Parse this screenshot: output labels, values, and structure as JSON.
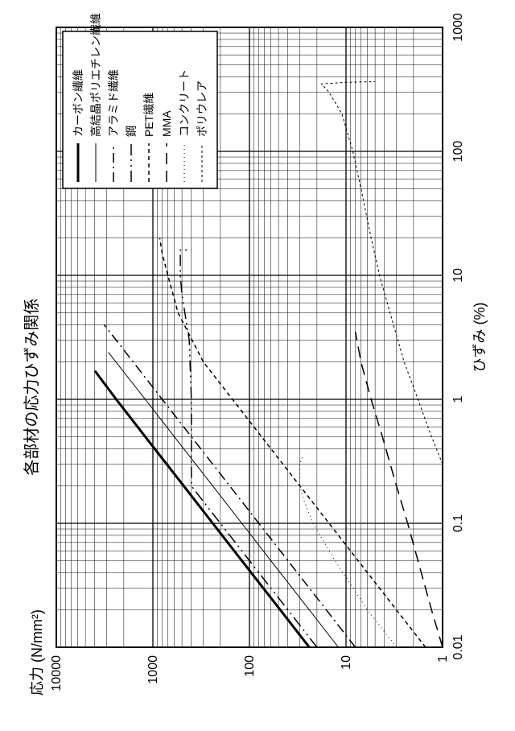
{
  "chart": {
    "type": "line-loglog",
    "title": "各部材の応力ひずみ関係",
    "xlabel": "ひずみ (%)",
    "ylabel": "応力 (N/mm²)",
    "xlim": [
      0.01,
      1000
    ],
    "ylim": [
      1,
      10000
    ],
    "xticks": [
      0.01,
      0.1,
      1,
      10,
      100,
      1000
    ],
    "yticks": [
      1,
      10,
      100,
      1000,
      10000
    ],
    "xtick_labels": [
      "0.01",
      "0.1",
      "1",
      "10",
      "100",
      "1000"
    ],
    "ytick_labels": [
      "1",
      "10",
      "100",
      "1000",
      "10000"
    ],
    "background_color": "#ffffff",
    "grid_color": "#000000",
    "border_color": "#000000",
    "title_fontsize": 20,
    "label_fontsize": 18,
    "tick_fontsize": 16,
    "legend_fontsize": 14,
    "legend_border": "#000000",
    "series": [
      {
        "name": "カーボン繊維",
        "dash": "solid",
        "width": 3.0,
        "color": "#000000",
        "points": [
          [
            0.01,
            24
          ],
          [
            0.02,
            48
          ],
          [
            0.05,
            120
          ],
          [
            0.1,
            240
          ],
          [
            0.2,
            480
          ],
          [
            0.5,
            1200
          ],
          [
            1.0,
            2400
          ],
          [
            1.7,
            4000
          ]
        ]
      },
      {
        "name": "高結晶ポリエチレン繊維",
        "dash": "solid",
        "width": 1.0,
        "color": "#000000",
        "points": [
          [
            0.01,
            12
          ],
          [
            0.02,
            24
          ],
          [
            0.05,
            60
          ],
          [
            0.1,
            120
          ],
          [
            0.2,
            240
          ],
          [
            0.5,
            600
          ],
          [
            1.0,
            1200
          ],
          [
            2.4,
            2900
          ]
        ]
      },
      {
        "name": "アラミド繊維",
        "dash": "dash-dot",
        "width": 1.5,
        "color": "#000000",
        "points": [
          [
            0.01,
            8
          ],
          [
            0.02,
            16
          ],
          [
            0.05,
            40
          ],
          [
            0.1,
            80
          ],
          [
            0.2,
            160
          ],
          [
            0.5,
            400
          ],
          [
            1.0,
            800
          ],
          [
            2.0,
            1600
          ],
          [
            4.0,
            3200
          ]
        ]
      },
      {
        "name": "鋼",
        "dash": "dash-dot-dot",
        "width": 1.5,
        "color": "#000000",
        "points": [
          [
            0.01,
            20
          ],
          [
            0.02,
            40
          ],
          [
            0.05,
            100
          ],
          [
            0.1,
            200
          ],
          [
            0.15,
            300
          ],
          [
            0.2,
            400
          ],
          [
            0.3,
            400
          ],
          [
            1,
            400
          ],
          [
            3,
            420
          ],
          [
            7,
            500
          ],
          [
            10,
            520
          ],
          [
            16,
            520
          ],
          [
            16,
            400
          ]
        ]
      },
      {
        "name": "PET繊維",
        "dash": "short-dash",
        "width": 1.5,
        "color": "#000000",
        "points": [
          [
            0.01,
            1.5
          ],
          [
            0.02,
            3
          ],
          [
            0.05,
            7.5
          ],
          [
            0.1,
            15
          ],
          [
            0.2,
            30
          ],
          [
            0.5,
            75
          ],
          [
            1.0,
            150
          ],
          [
            2.0,
            300
          ],
          [
            5,
            550
          ],
          [
            10,
            700
          ],
          [
            15,
            800
          ],
          [
            20,
            850
          ]
        ]
      },
      {
        "name": "MMA",
        "dash": "long-dash",
        "width": 1.5,
        "color": "#000000",
        "points": [
          [
            0.01,
            1.0
          ],
          [
            0.02,
            1.3
          ],
          [
            0.05,
            1.8
          ],
          [
            0.1,
            2.3
          ],
          [
            0.2,
            3.0
          ],
          [
            0.5,
            4.2
          ],
          [
            1.0,
            5.5
          ],
          [
            2.0,
            7.0
          ],
          [
            3.5,
            8.0
          ]
        ]
      },
      {
        "name": "コンクリート",
        "dash": "dots",
        "width": 1.0,
        "color": "#000000",
        "points": [
          [
            0.01,
            3
          ],
          [
            0.02,
            6
          ],
          [
            0.05,
            13
          ],
          [
            0.1,
            22
          ],
          [
            0.15,
            27
          ],
          [
            0.2,
            30
          ],
          [
            0.3,
            30
          ],
          [
            0.35,
            28
          ]
        ]
      },
      {
        "name": "ポリウレア",
        "dash": "tiny-dash",
        "width": 1.0,
        "color": "#000000",
        "points": [
          [
            0.3,
            1.0
          ],
          [
            0.5,
            1.3
          ],
          [
            1,
            1.8
          ],
          [
            2,
            2.5
          ],
          [
            5,
            3.5
          ],
          [
            10,
            4.5
          ],
          [
            20,
            5.5
          ],
          [
            50,
            7.0
          ],
          [
            100,
            8.5
          ],
          [
            200,
            11
          ],
          [
            300,
            15
          ],
          [
            350,
            18
          ],
          [
            360,
            10
          ],
          [
            365,
            5
          ]
        ]
      }
    ]
  }
}
